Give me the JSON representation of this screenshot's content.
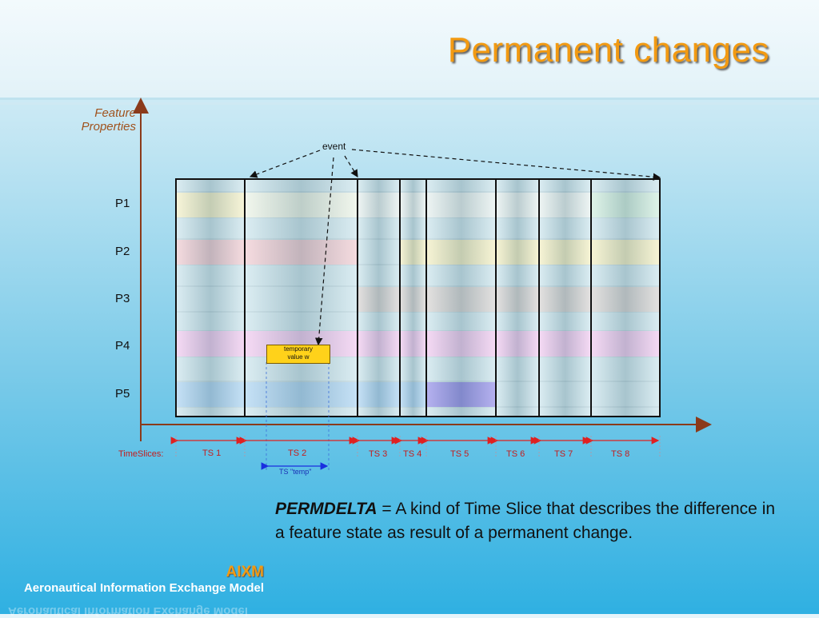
{
  "slide": {
    "title": "Permanent changes",
    "y_axis_label": [
      "Feature",
      "Properties"
    ],
    "properties": [
      "P1",
      "P2",
      "P3",
      "P4",
      "P5"
    ],
    "event_label": "event",
    "temporary_value": [
      "temporary",
      "value w"
    ],
    "timeslices_label": "TimeSlices:",
    "timeslices": [
      "TS 1",
      "TS 2",
      "TS 3",
      "TS 4",
      "TS 5",
      "TS 6",
      "TS 7",
      "TS 8"
    ],
    "temp_slice_label": "TS \"temp\"",
    "description_term": "PERMDELTA",
    "description_text": " = A kind of Time Slice that describes the difference in a feature state as result of a permanent change.",
    "brand": "AIXM",
    "brand_subtitle": "Aeronautical Information Exchange Model"
  },
  "colors": {
    "title": "#f29a12",
    "axis": "#8b3a1a",
    "marker_red": "#e02020",
    "marker_blue": "#1a2fe0",
    "p1": "#f4f0c4",
    "p2": "#f1c9cf",
    "p3": "#d6d2d0",
    "p4": "#f1c7ef",
    "p5": "#a8d2f2",
    "p5_changed": "#8f88e8",
    "p1_changed": "#cfeedd"
  }
}
